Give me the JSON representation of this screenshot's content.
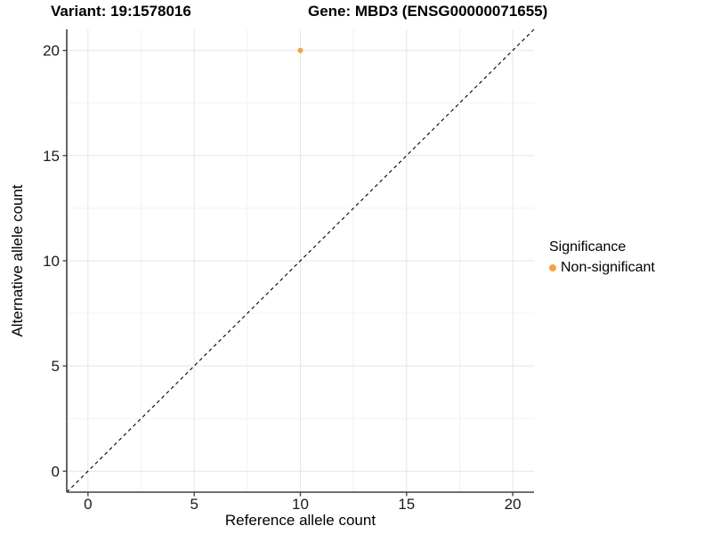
{
  "chart_data": {
    "type": "scatter",
    "titles": {
      "variant": "Variant: 19:1578016",
      "gene": "Gene: MBD3 (ENSG00000071655)"
    },
    "xlabel": "Reference allele count",
    "ylabel": "Alternative allele count",
    "xlim": [
      -1,
      21
    ],
    "ylim": [
      -1,
      21
    ],
    "x_ticks": [
      0,
      5,
      10,
      15,
      20
    ],
    "y_ticks": [
      0,
      5,
      10,
      15,
      20
    ],
    "x_minor_ticks": [
      2.5,
      7.5,
      12.5,
      17.5
    ],
    "y_minor_ticks": [
      2.5,
      7.5,
      12.5,
      17.5
    ],
    "grid": true,
    "points": [
      {
        "x": 10,
        "y": 20,
        "series": "Non-significant"
      }
    ],
    "reference_line": {
      "type": "identity",
      "style": "dashed",
      "from": [
        -1,
        -1
      ],
      "to": [
        21,
        21
      ],
      "color": "#000000"
    },
    "legend": {
      "title": "Significance",
      "position": "right",
      "items": [
        {
          "label": "Non-significant",
          "color": "#F9A242"
        }
      ]
    },
    "colors": {
      "non_significant": "#F9A242",
      "axis_line": "#404040",
      "tick_label": "#1a1a1a",
      "grid_major": "#e5e5e5",
      "grid_minor": "#f2f2f2",
      "background": "#ffffff"
    }
  }
}
